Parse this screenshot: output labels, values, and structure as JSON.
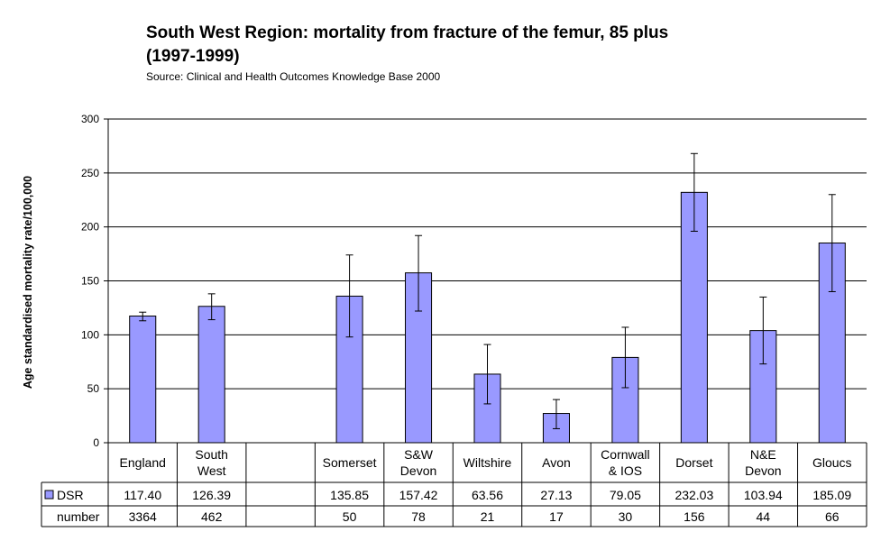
{
  "title": "South West Region:  mortality from fracture of the femur, 85 plus\n(1997-1999)",
  "source": "Source: Clinical and Health Outcomes Knowledge Base 2000",
  "colors": {
    "bar": "#9999ff",
    "grid": "#000000"
  },
  "chart_data": {
    "type": "bar",
    "ylabel": "Age standardised mortality rate/100,000",
    "ylim": [
      0,
      300
    ],
    "yticks": [
      0,
      50,
      100,
      150,
      200,
      250,
      300
    ],
    "grid": true,
    "categories": [
      "England",
      "South\nWest",
      "",
      "Somerset",
      "S&W\nDevon",
      "Wiltshire",
      "Avon",
      "Cornwall\n& IOS",
      "Dorset",
      "N&E\nDevon",
      "Gloucs"
    ],
    "series": [
      {
        "name": "DSR",
        "values": [
          117.4,
          126.39,
          null,
          135.85,
          157.42,
          63.56,
          27.13,
          79.05,
          232.03,
          103.94,
          185.09
        ]
      }
    ],
    "error_low": [
      113,
      114,
      null,
      98,
      122,
      36,
      13,
      51,
      196,
      73,
      140
    ],
    "error_high": [
      121,
      138,
      null,
      174,
      192,
      91,
      40,
      107,
      268,
      135,
      230
    ],
    "table_rows": [
      {
        "label": "DSR",
        "values": [
          "117.40",
          "126.39",
          "",
          "135.85",
          "157.42",
          "63.56",
          "27.13",
          "79.05",
          "232.03",
          "103.94",
          "185.09"
        ]
      },
      {
        "label": "number",
        "values": [
          "3364",
          "462",
          "",
          "50",
          "78",
          "21",
          "17",
          "30",
          "156",
          "44",
          "66"
        ]
      }
    ]
  }
}
